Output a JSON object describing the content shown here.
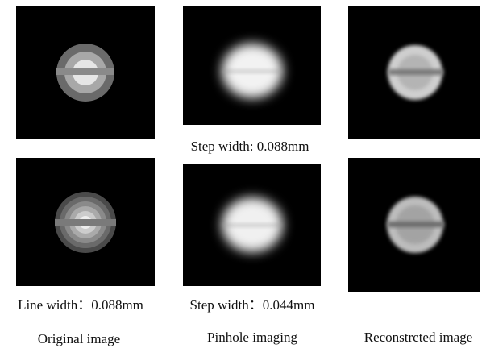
{
  "row_captions": [
    "Step width: 0.088mm",
    "Line width：0.088mm",
    "Step width：0.044mm"
  ],
  "column_labels": [
    "Original image",
    "Pinhole imaging",
    "Reconstrcted image"
  ]
}
